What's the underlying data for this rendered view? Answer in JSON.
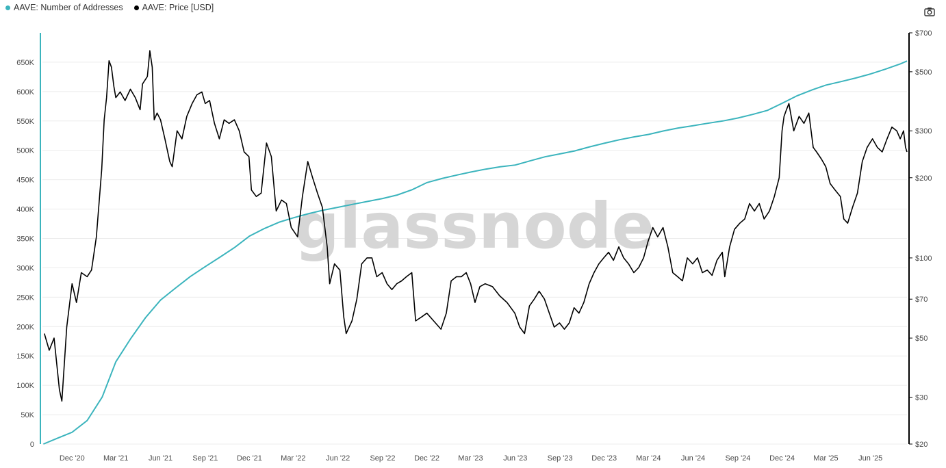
{
  "legend": {
    "series_addresses_label": "AAVE: Number of Addresses",
    "series_price_label": "AAVE: Price [USD]"
  },
  "toolbar": {
    "camera_icon": "camera-icon"
  },
  "watermark": "glassnode",
  "colors": {
    "addresses": "#3bb4bd",
    "price": "#000000",
    "grid": "#ececec"
  },
  "chart_data": {
    "type": "line",
    "x_tick_labels": [
      "Dec '20",
      "Mar '21",
      "Jun '21",
      "Sep '21",
      "Dec '21",
      "Mar '22",
      "Jun '22",
      "Sep '22",
      "Dec '22",
      "Mar '23",
      "Jun '23",
      "Sep '23",
      "Dec '23",
      "Mar '24",
      "Jun '24",
      "Sep '24",
      "Dec '24",
      "Mar '25",
      "Jun '25"
    ],
    "x_tick_dates": [
      "2020-12-01",
      "2021-03-01",
      "2021-06-01",
      "2021-09-01",
      "2021-12-01",
      "2022-03-01",
      "2022-06-01",
      "2022-09-01",
      "2022-12-01",
      "2023-03-01",
      "2023-06-01",
      "2023-09-01",
      "2023-12-01",
      "2024-03-01",
      "2024-06-01",
      "2024-09-01",
      "2024-12-01",
      "2025-03-01",
      "2025-06-01"
    ],
    "x_range": [
      "2020-10-01",
      "2025-08-15"
    ],
    "left_axis": {
      "range": [
        0,
        700000
      ],
      "ticks": [
        0,
        50000,
        100000,
        150000,
        200000,
        250000,
        300000,
        350000,
        400000,
        450000,
        500000,
        550000,
        600000,
        650000
      ],
      "tick_labels": [
        "0",
        "50K",
        "100K",
        "150K",
        "200K",
        "250K",
        "300K",
        "350K",
        "400K",
        "450K",
        "500K",
        "550K",
        "600K",
        "650K"
      ]
    },
    "right_axis": {
      "scale": "log",
      "range": [
        20,
        700
      ],
      "ticks": [
        20,
        30,
        50,
        70,
        100,
        200,
        300,
        500,
        700
      ],
      "tick_labels": [
        "$20",
        "$30",
        "$50",
        "$70",
        "$100",
        "$200",
        "$300",
        "$500",
        "$700"
      ]
    },
    "grid": true,
    "legend_position": "top-left",
    "series": [
      {
        "name": "AAVE: Number of Addresses",
        "axis": "left",
        "points": [
          [
            "2020-10-03",
            0
          ],
          [
            "2020-11-01",
            10000
          ],
          [
            "2020-12-01",
            20000
          ],
          [
            "2021-01-01",
            40000
          ],
          [
            "2021-02-01",
            80000
          ],
          [
            "2021-03-01",
            140000
          ],
          [
            "2021-04-01",
            180000
          ],
          [
            "2021-05-01",
            215000
          ],
          [
            "2021-06-01",
            245000
          ],
          [
            "2021-07-01",
            265000
          ],
          [
            "2021-08-01",
            285000
          ],
          [
            "2021-09-01",
            302000
          ],
          [
            "2021-10-01",
            318000
          ],
          [
            "2021-11-01",
            335000
          ],
          [
            "2021-12-01",
            354000
          ],
          [
            "2022-01-01",
            367000
          ],
          [
            "2022-02-01",
            378000
          ],
          [
            "2022-03-01",
            385000
          ],
          [
            "2022-04-01",
            392000
          ],
          [
            "2022-05-01",
            398000
          ],
          [
            "2022-06-01",
            403000
          ],
          [
            "2022-07-01",
            408000
          ],
          [
            "2022-08-01",
            413000
          ],
          [
            "2022-09-01",
            418000
          ],
          [
            "2022-10-01",
            424000
          ],
          [
            "2022-11-01",
            433000
          ],
          [
            "2022-12-01",
            445000
          ],
          [
            "2023-01-01",
            452000
          ],
          [
            "2023-02-01",
            458000
          ],
          [
            "2023-03-01",
            463000
          ],
          [
            "2023-04-01",
            468000
          ],
          [
            "2023-05-01",
            472000
          ],
          [
            "2023-06-01",
            475000
          ],
          [
            "2023-07-01",
            482000
          ],
          [
            "2023-08-01",
            489000
          ],
          [
            "2023-09-01",
            494000
          ],
          [
            "2023-10-01",
            499000
          ],
          [
            "2023-11-01",
            506000
          ],
          [
            "2023-12-01",
            512000
          ],
          [
            "2024-01-01",
            518000
          ],
          [
            "2024-02-01",
            523000
          ],
          [
            "2024-03-01",
            527000
          ],
          [
            "2024-04-01",
            533000
          ],
          [
            "2024-05-01",
            538000
          ],
          [
            "2024-06-01",
            542000
          ],
          [
            "2024-07-01",
            546000
          ],
          [
            "2024-08-01",
            550000
          ],
          [
            "2024-09-01",
            555000
          ],
          [
            "2024-10-01",
            561000
          ],
          [
            "2024-11-01",
            568000
          ],
          [
            "2024-12-01",
            580000
          ],
          [
            "2025-01-01",
            593000
          ],
          [
            "2025-02-01",
            603000
          ],
          [
            "2025-03-01",
            611000
          ],
          [
            "2025-04-01",
            617000
          ],
          [
            "2025-05-01",
            623000
          ],
          [
            "2025-06-01",
            630000
          ],
          [
            "2025-07-01",
            638000
          ],
          [
            "2025-08-01",
            647000
          ],
          [
            "2025-08-15",
            652000
          ]
        ]
      },
      {
        "name": "AAVE: Price [USD]",
        "axis": "right",
        "points": [
          [
            "2020-10-05",
            52
          ],
          [
            "2020-10-15",
            45
          ],
          [
            "2020-10-25",
            50
          ],
          [
            "2020-11-05",
            32
          ],
          [
            "2020-11-10",
            29
          ],
          [
            "2020-11-20",
            55
          ],
          [
            "2020-12-01",
            80
          ],
          [
            "2020-12-10",
            68
          ],
          [
            "2020-12-20",
            88
          ],
          [
            "2021-01-01",
            85
          ],
          [
            "2021-01-10",
            90
          ],
          [
            "2021-01-20",
            120
          ],
          [
            "2021-01-31",
            215
          ],
          [
            "2021-02-05",
            330
          ],
          [
            "2021-02-10",
            400
          ],
          [
            "2021-02-15",
            550
          ],
          [
            "2021-02-20",
            520
          ],
          [
            "2021-02-25",
            440
          ],
          [
            "2021-03-01",
            400
          ],
          [
            "2021-03-10",
            420
          ],
          [
            "2021-03-20",
            390
          ],
          [
            "2021-03-31",
            430
          ],
          [
            "2021-04-10",
            400
          ],
          [
            "2021-04-20",
            360
          ],
          [
            "2021-04-25",
            450
          ],
          [
            "2021-05-05",
            480
          ],
          [
            "2021-05-10",
            600
          ],
          [
            "2021-05-15",
            520
          ],
          [
            "2021-05-19",
            330
          ],
          [
            "2021-05-25",
            350
          ],
          [
            "2021-06-01",
            330
          ],
          [
            "2021-06-10",
            280
          ],
          [
            "2021-06-20",
            230
          ],
          [
            "2021-06-25",
            220
          ],
          [
            "2021-07-05",
            300
          ],
          [
            "2021-07-15",
            280
          ],
          [
            "2021-07-25",
            340
          ],
          [
            "2021-08-05",
            380
          ],
          [
            "2021-08-15",
            410
          ],
          [
            "2021-08-25",
            420
          ],
          [
            "2021-09-01",
            380
          ],
          [
            "2021-09-10",
            390
          ],
          [
            "2021-09-20",
            320
          ],
          [
            "2021-09-30",
            280
          ],
          [
            "2021-10-10",
            330
          ],
          [
            "2021-10-20",
            320
          ],
          [
            "2021-10-31",
            330
          ],
          [
            "2021-11-10",
            300
          ],
          [
            "2021-11-20",
            250
          ],
          [
            "2021-11-30",
            240
          ],
          [
            "2021-12-05",
            180
          ],
          [
            "2021-12-15",
            170
          ],
          [
            "2021-12-25",
            175
          ],
          [
            "2022-01-05",
            270
          ],
          [
            "2022-01-15",
            240
          ],
          [
            "2022-01-25",
            150
          ],
          [
            "2022-02-05",
            165
          ],
          [
            "2022-02-15",
            160
          ],
          [
            "2022-02-25",
            130
          ],
          [
            "2022-03-10",
            120
          ],
          [
            "2022-03-20",
            170
          ],
          [
            "2022-03-31",
            230
          ],
          [
            "2022-04-10",
            200
          ],
          [
            "2022-04-20",
            175
          ],
          [
            "2022-04-30",
            155
          ],
          [
            "2022-05-10",
            110
          ],
          [
            "2022-05-15",
            80
          ],
          [
            "2022-05-25",
            95
          ],
          [
            "2022-06-05",
            90
          ],
          [
            "2022-06-13",
            60
          ],
          [
            "2022-06-18",
            52
          ],
          [
            "2022-06-30",
            58
          ],
          [
            "2022-07-10",
            70
          ],
          [
            "2022-07-20",
            95
          ],
          [
            "2022-07-31",
            100
          ],
          [
            "2022-08-10",
            100
          ],
          [
            "2022-08-20",
            85
          ],
          [
            "2022-08-31",
            88
          ],
          [
            "2022-09-10",
            80
          ],
          [
            "2022-09-20",
            76
          ],
          [
            "2022-09-30",
            80
          ],
          [
            "2022-10-10",
            82
          ],
          [
            "2022-10-20",
            85
          ],
          [
            "2022-10-31",
            88
          ],
          [
            "2022-11-08",
            58
          ],
          [
            "2022-11-20",
            60
          ],
          [
            "2022-12-01",
            62
          ],
          [
            "2022-12-15",
            58
          ],
          [
            "2022-12-30",
            54
          ],
          [
            "2023-01-10",
            62
          ],
          [
            "2023-01-20",
            82
          ],
          [
            "2023-01-31",
            85
          ],
          [
            "2023-02-10",
            85
          ],
          [
            "2023-02-20",
            88
          ],
          [
            "2023-03-01",
            80
          ],
          [
            "2023-03-10",
            68
          ],
          [
            "2023-03-20",
            78
          ],
          [
            "2023-03-31",
            80
          ],
          [
            "2023-04-15",
            78
          ],
          [
            "2023-04-30",
            72
          ],
          [
            "2023-05-15",
            68
          ],
          [
            "2023-05-31",
            62
          ],
          [
            "2023-06-10",
            55
          ],
          [
            "2023-06-20",
            52
          ],
          [
            "2023-06-30",
            66
          ],
          [
            "2023-07-10",
            70
          ],
          [
            "2023-07-20",
            75
          ],
          [
            "2023-07-31",
            70
          ],
          [
            "2023-08-10",
            62
          ],
          [
            "2023-08-20",
            55
          ],
          [
            "2023-08-31",
            57
          ],
          [
            "2023-09-10",
            54
          ],
          [
            "2023-09-20",
            57
          ],
          [
            "2023-09-30",
            65
          ],
          [
            "2023-10-10",
            62
          ],
          [
            "2023-10-20",
            68
          ],
          [
            "2023-10-31",
            80
          ],
          [
            "2023-11-10",
            88
          ],
          [
            "2023-11-20",
            95
          ],
          [
            "2023-11-30",
            100
          ],
          [
            "2023-12-10",
            105
          ],
          [
            "2023-12-20",
            98
          ],
          [
            "2023-12-31",
            110
          ],
          [
            "2024-01-10",
            100
          ],
          [
            "2024-01-20",
            95
          ],
          [
            "2024-01-31",
            88
          ],
          [
            "2024-02-10",
            92
          ],
          [
            "2024-02-20",
            100
          ],
          [
            "2024-02-29",
            115
          ],
          [
            "2024-03-10",
            130
          ],
          [
            "2024-03-20",
            120
          ],
          [
            "2024-03-31",
            130
          ],
          [
            "2024-04-10",
            110
          ],
          [
            "2024-04-20",
            88
          ],
          [
            "2024-04-30",
            85
          ],
          [
            "2024-05-10",
            82
          ],
          [
            "2024-05-20",
            100
          ],
          [
            "2024-05-31",
            95
          ],
          [
            "2024-06-10",
            100
          ],
          [
            "2024-06-20",
            88
          ],
          [
            "2024-06-30",
            90
          ],
          [
            "2024-07-10",
            86
          ],
          [
            "2024-07-20",
            98
          ],
          [
            "2024-07-31",
            105
          ],
          [
            "2024-08-05",
            85
          ],
          [
            "2024-08-15",
            110
          ],
          [
            "2024-08-25",
            128
          ],
          [
            "2024-09-05",
            135
          ],
          [
            "2024-09-15",
            140
          ],
          [
            "2024-09-25",
            160
          ],
          [
            "2024-10-05",
            150
          ],
          [
            "2024-10-15",
            160
          ],
          [
            "2024-10-25",
            140
          ],
          [
            "2024-11-05",
            150
          ],
          [
            "2024-11-15",
            170
          ],
          [
            "2024-11-25",
            200
          ],
          [
            "2024-12-01",
            300
          ],
          [
            "2024-12-05",
            340
          ],
          [
            "2024-12-10",
            360
          ],
          [
            "2024-12-15",
            380
          ],
          [
            "2024-12-25",
            300
          ],
          [
            "2025-01-05",
            340
          ],
          [
            "2025-01-15",
            320
          ],
          [
            "2025-01-25",
            350
          ],
          [
            "2025-02-03",
            260
          ],
          [
            "2025-02-10",
            250
          ],
          [
            "2025-02-20",
            235
          ],
          [
            "2025-03-01",
            220
          ],
          [
            "2025-03-10",
            190
          ],
          [
            "2025-03-20",
            180
          ],
          [
            "2025-03-31",
            170
          ],
          [
            "2025-04-07",
            140
          ],
          [
            "2025-04-15",
            135
          ],
          [
            "2025-04-25",
            155
          ],
          [
            "2025-05-05",
            175
          ],
          [
            "2025-05-15",
            230
          ],
          [
            "2025-05-25",
            260
          ],
          [
            "2025-06-05",
            280
          ],
          [
            "2025-06-15",
            260
          ],
          [
            "2025-06-25",
            250
          ],
          [
            "2025-07-05",
            280
          ],
          [
            "2025-07-15",
            310
          ],
          [
            "2025-07-25",
            300
          ],
          [
            "2025-08-01",
            280
          ],
          [
            "2025-08-08",
            300
          ],
          [
            "2025-08-12",
            260
          ],
          [
            "2025-08-15",
            250
          ]
        ]
      }
    ]
  }
}
